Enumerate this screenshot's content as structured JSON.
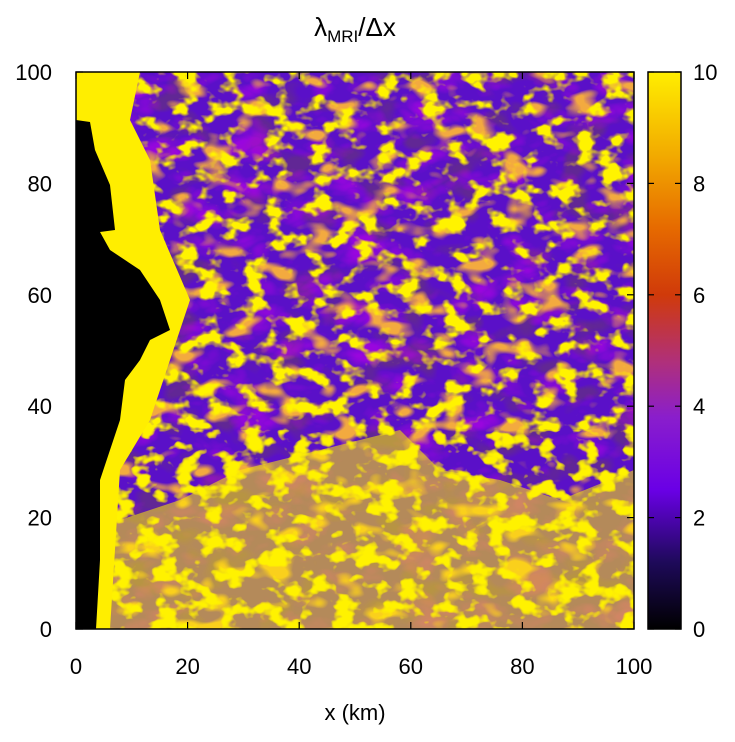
{
  "chart_data": {
    "type": "heatmap",
    "title": {
      "main": "λ",
      "subscript": "MRI",
      "rest": "/Δx"
    },
    "xlabel": "x (km)",
    "ylabel": "",
    "xlim": [
      0,
      100
    ],
    "ylim": [
      0,
      100
    ],
    "x_ticks": [
      "0",
      "20",
      "40",
      "60",
      "80",
      "100"
    ],
    "y_ticks": [
      "0",
      "20",
      "40",
      "60",
      "80",
      "100"
    ],
    "colorbar": {
      "range": [
        0,
        10
      ],
      "ticks": [
        "0",
        "2",
        "4",
        "6",
        "8",
        "10"
      ],
      "palette": [
        "#000000",
        "#1e0a5a",
        "#6a00e6",
        "#8a1ecc",
        "#b0307a",
        "#d03a0a",
        "#e66a00",
        "#f2aa00",
        "#ffee00"
      ]
    },
    "regions": [
      {
        "name": "black-void-upper-left",
        "x_range": [
          0,
          15
        ],
        "y_range": [
          40,
          95
        ],
        "level": 0
      },
      {
        "name": "turbulent-yellow-lower",
        "x_range": [
          5,
          100
        ],
        "y_range": [
          0,
          35
        ],
        "level": 9
      },
      {
        "name": "purple-upper-right",
        "x_range": [
          55,
          100
        ],
        "y_range": [
          40,
          100
        ],
        "level": 2.5
      },
      {
        "name": "mixed-upper-left",
        "x_range": [
          10,
          55
        ],
        "y_range": [
          35,
          100
        ],
        "level": 5
      }
    ]
  }
}
